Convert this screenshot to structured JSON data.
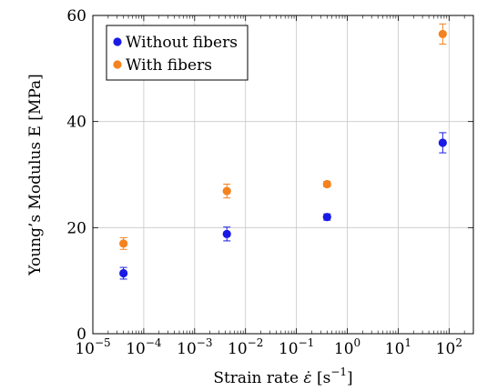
{
  "chart_data": {
    "type": "scatter",
    "title": "",
    "xlabel": "Strain rate",
    "xlabel_symbol": "ε̇",
    "xlabel_unit_base": "[s",
    "xlabel_unit_exp": "−1",
    "xlabel_unit_close": "]",
    "ylabel": "Young’s Modulus E [MPa]",
    "xscale": "log",
    "xlim": [
      1e-05,
      300
    ],
    "ylim": [
      0,
      60
    ],
    "x_tick_base": "10",
    "x_ticks": [
      {
        "value": 1e-05,
        "exp": "−5"
      },
      {
        "value": 0.0001,
        "exp": "−4"
      },
      {
        "value": 0.001,
        "exp": "−3"
      },
      {
        "value": 0.01,
        "exp": "−2"
      },
      {
        "value": 0.1,
        "exp": "−1"
      },
      {
        "value": 1,
        "exp": "0"
      },
      {
        "value": 10,
        "exp": "1"
      },
      {
        "value": 100,
        "exp": "2"
      }
    ],
    "y_ticks": [
      {
        "value": 0,
        "label": "0"
      },
      {
        "value": 20,
        "label": "20"
      },
      {
        "value": 40,
        "label": "40"
      },
      {
        "value": 60,
        "label": "60"
      }
    ],
    "grid": true,
    "legend_position": "top-left",
    "series": [
      {
        "name": "Without fibers",
        "color": "#1a1ae6",
        "points": [
          {
            "x": 4e-05,
            "y": 11.4,
            "err": 1.1
          },
          {
            "x": 0.0043,
            "y": 18.8,
            "err": 1.3
          },
          {
            "x": 0.4,
            "y": 22.0,
            "err": 0.6
          },
          {
            "x": 75,
            "y": 36.0,
            "err": 1.9
          }
        ]
      },
      {
        "name": "With fibers",
        "color": "#f5821f",
        "points": [
          {
            "x": 4e-05,
            "y": 17.0,
            "err": 1.1
          },
          {
            "x": 0.0043,
            "y": 26.9,
            "err": 1.3
          },
          {
            "x": 0.4,
            "y": 28.2,
            "err": 0.5
          },
          {
            "x": 75,
            "y": 56.5,
            "err": 1.9
          }
        ]
      }
    ]
  }
}
